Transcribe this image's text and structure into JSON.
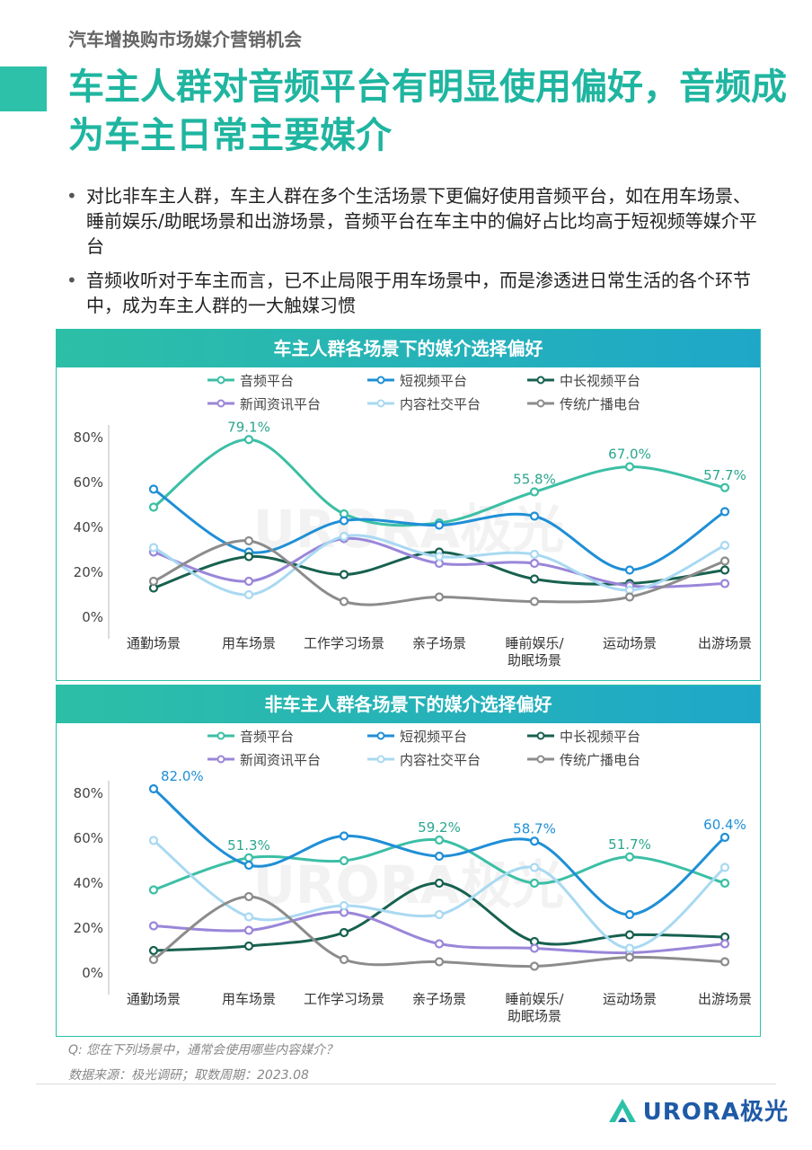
{
  "page": {
    "supertitle": "汽车增换购市场媒介营销机会",
    "title": "车主人群对音频平台有明显使用偏好，音频成为车主日常主要媒介",
    "bullets": [
      "对比非车主人群，车主人群在多个生活场景下更偏好使用音频平台，如在用车场景、睡前娱乐/助眠场景和出游场景，音频平台在车主中的偏好占比均高于短视频等媒介平台",
      "音频收听对于车主而言，已不止局限于用车场景中，而是渗透进日常生活的各个环节中，成为车主人群的一大触媒习惯"
    ],
    "footnote_q": "Q:  您在下列场景中，通常会使用哪些内容媒介？",
    "footnote_source": "数据来源：极光调研；取数周期：2023.08",
    "brand": "URORA极光",
    "watermark": "URORA极光"
  },
  "colors": {
    "音频平台": "#3cbfa5",
    "短视频平台": "#1f8fd6",
    "中长视频平台": "#17614f",
    "新闻资讯平台": "#9a86d9",
    "内容社交平台": "#a9d9f2",
    "传统广播电台": "#8c8c8c",
    "accent": "#1fb5a0"
  },
  "chart_data": [
    {
      "type": "line",
      "title": "车主人群各场景下的媒介选择偏好",
      "categories": [
        "通勤场景",
        "用车场景",
        "工作学习场景",
        "亲子场景",
        "睡前娱乐/助眠场景",
        "运动场景",
        "出游场景"
      ],
      "category_lines": [
        [
          "通勤场景"
        ],
        [
          "用车场景"
        ],
        [
          "工作学习场景"
        ],
        [
          "亲子场景"
        ],
        [
          "睡前娱乐/",
          "助眠场景"
        ],
        [
          "运动场景"
        ],
        [
          "出游场景"
        ]
      ],
      "yticks": [
        "80%",
        "60%",
        "40%",
        "20%",
        "0%"
      ],
      "ylim": [
        0,
        80
      ],
      "legend_position": "top",
      "series": [
        {
          "name": "音频平台",
          "values": [
            49,
            79.1,
            46,
            42,
            55.8,
            67.0,
            57.7
          ],
          "labels": [
            null,
            "79.1%",
            null,
            null,
            "55.8%",
            "67.0%",
            "57.7%"
          ]
        },
        {
          "name": "短视频平台",
          "values": [
            57,
            29,
            43,
            41,
            45,
            21,
            47
          ]
        },
        {
          "name": "中长视频平台",
          "values": [
            13,
            27,
            19,
            29,
            17,
            15,
            21
          ]
        },
        {
          "name": "新闻资讯平台",
          "values": [
            29,
            16,
            35,
            24,
            24,
            14,
            15
          ]
        },
        {
          "name": "内容社交平台",
          "values": [
            31,
            10,
            36,
            27,
            28,
            12,
            32
          ]
        },
        {
          "name": "传统广播电台",
          "values": [
            16,
            34,
            7,
            9,
            7,
            9,
            25
          ]
        }
      ]
    },
    {
      "type": "line",
      "title": "非车主人群各场景下的媒介选择偏好",
      "categories": [
        "通勤场景",
        "用车场景",
        "工作学习场景",
        "亲子场景",
        "睡前娱乐/助眠场景",
        "运动场景",
        "出游场景"
      ],
      "category_lines": [
        [
          "通勤场景"
        ],
        [
          "用车场景"
        ],
        [
          "工作学习场景"
        ],
        [
          "亲子场景"
        ],
        [
          "睡前娱乐/",
          "助眠场景"
        ],
        [
          "运动场景"
        ],
        [
          "出游场景"
        ]
      ],
      "yticks": [
        "80%",
        "60%",
        "40%",
        "20%",
        "0%"
      ],
      "ylim": [
        0,
        80
      ],
      "legend_position": "top",
      "series": [
        {
          "name": "音频平台",
          "values": [
            37,
            51.3,
            50,
            59.2,
            40,
            51.7,
            40
          ],
          "labels": [
            null,
            "51.3%",
            null,
            "59.2%",
            null,
            "51.7%",
            null
          ]
        },
        {
          "name": "短视频平台",
          "values": [
            82.0,
            48,
            61,
            52,
            58.7,
            26,
            60.4
          ],
          "labels": [
            "82.0%",
            null,
            null,
            null,
            "58.7%",
            null,
            "60.4%"
          ]
        },
        {
          "name": "中长视频平台",
          "values": [
            10,
            12,
            18,
            40,
            14,
            17,
            16
          ]
        },
        {
          "name": "新闻资讯平台",
          "values": [
            21,
            19,
            27,
            13,
            11,
            9,
            13
          ]
        },
        {
          "name": "内容社交平台",
          "values": [
            59,
            25,
            30,
            26,
            47,
            11,
            47
          ]
        },
        {
          "name": "传统广播电台",
          "values": [
            6,
            34,
            6,
            5,
            3,
            7,
            5
          ]
        }
      ]
    }
  ]
}
